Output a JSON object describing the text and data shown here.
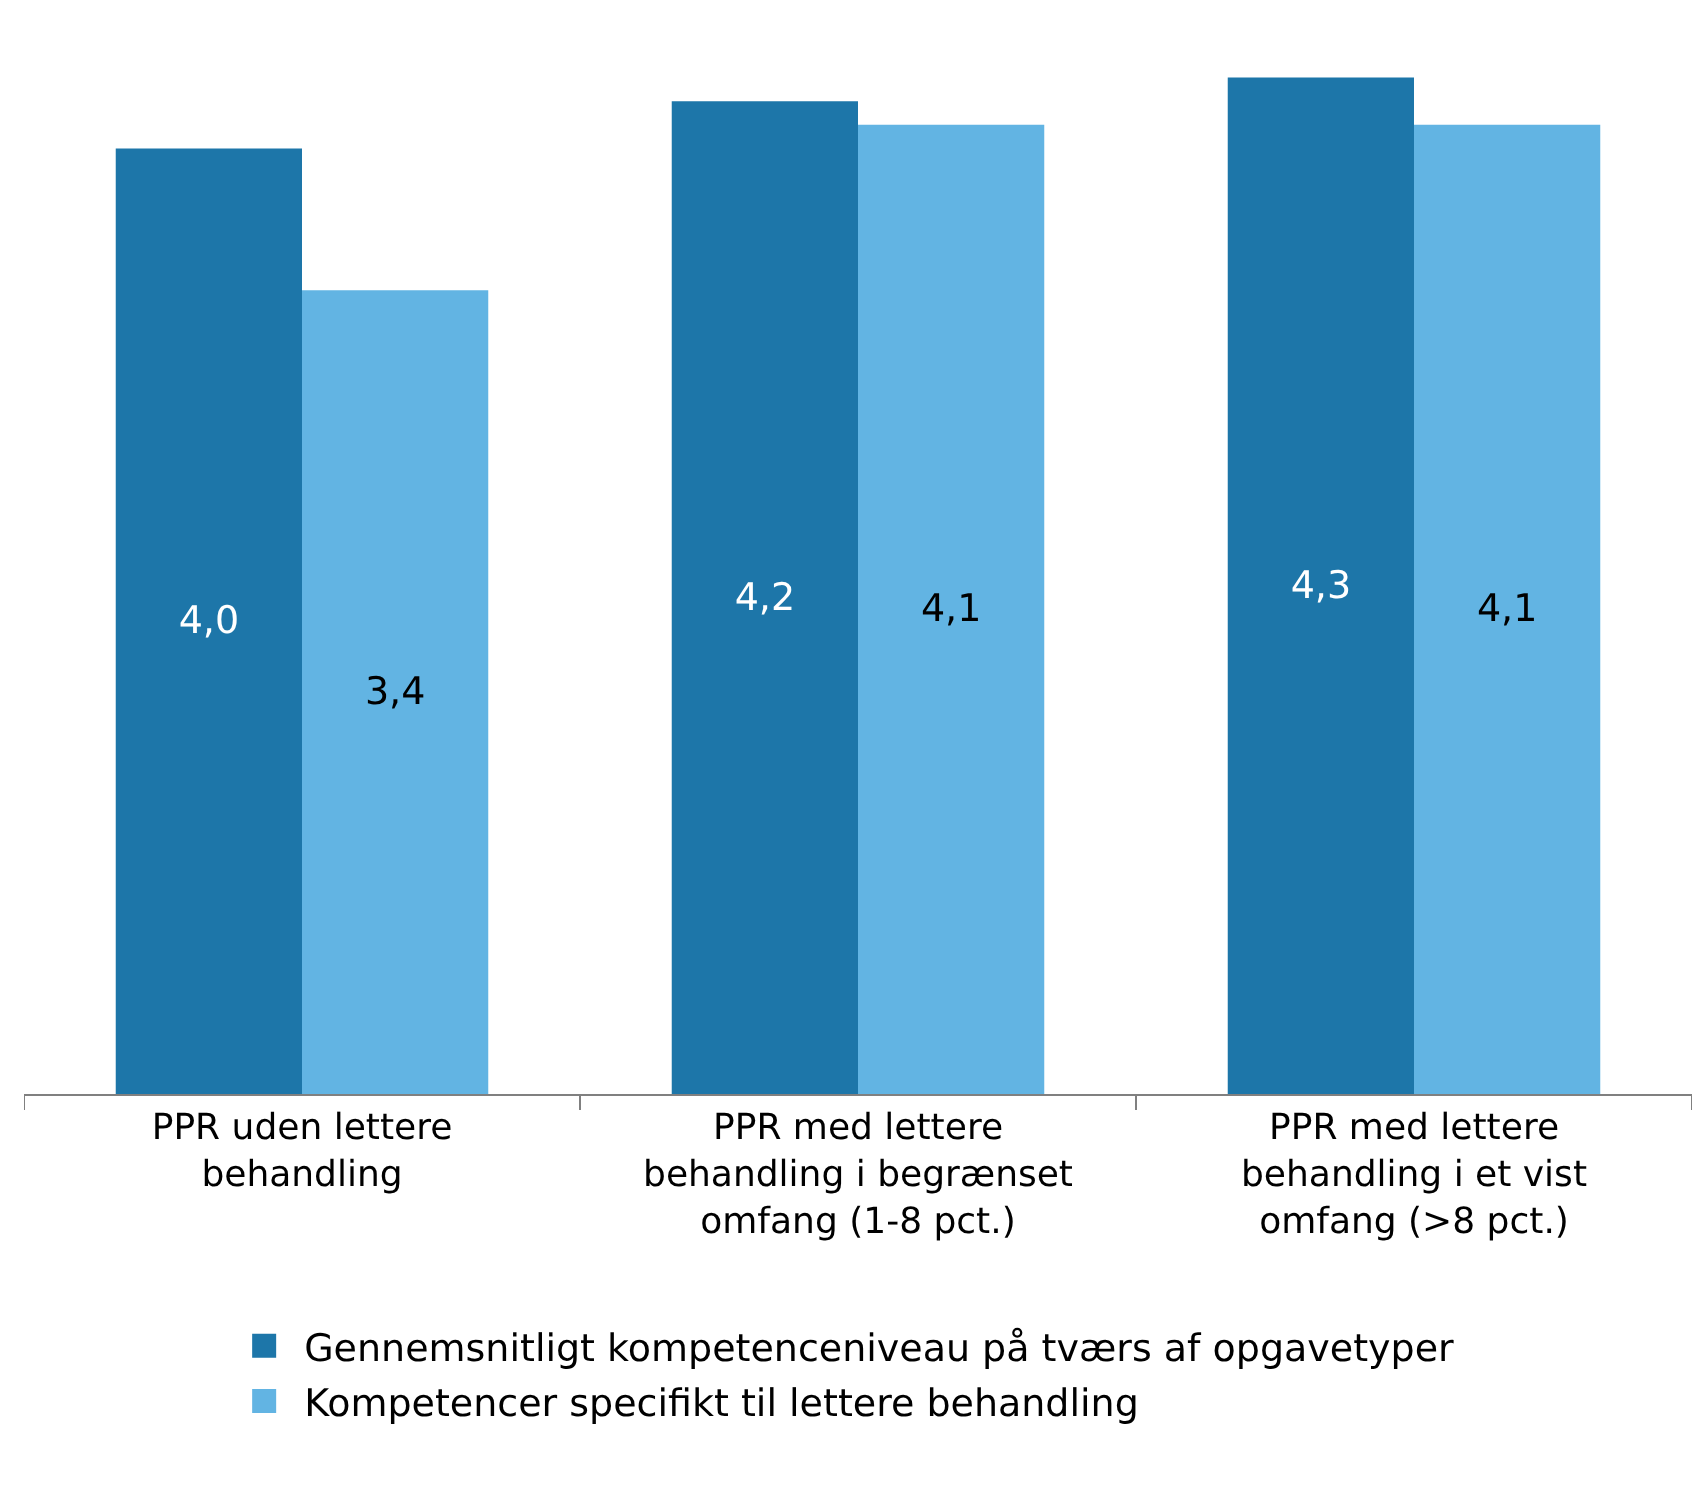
{
  "chart_data": {
    "type": "bar",
    "categories": [
      "PPR uden lettere behandling",
      "PPR med lettere behandling i begrænset omfang (1-8 pct.)",
      "PPR med lettere behandling i et vist omfang (>8 pct.)"
    ],
    "series": [
      {
        "name": "Gennemsnitligt kompetenceniveau på tværs af opgavetyper",
        "color": "#1d76a9",
        "values": [
          4.0,
          4.2,
          4.3
        ],
        "value_labels": [
          "4,0",
          "4,2",
          "4,3"
        ]
      },
      {
        "name": "Kompetencer specifikt til lettere behandling",
        "color": "#62b4e3",
        "values": [
          3.4,
          4.1,
          4.1
        ],
        "value_labels": [
          "3,4",
          "4,1",
          "4,1"
        ]
      }
    ],
    "legend": "bottom",
    "tick_labels": "x"
  }
}
